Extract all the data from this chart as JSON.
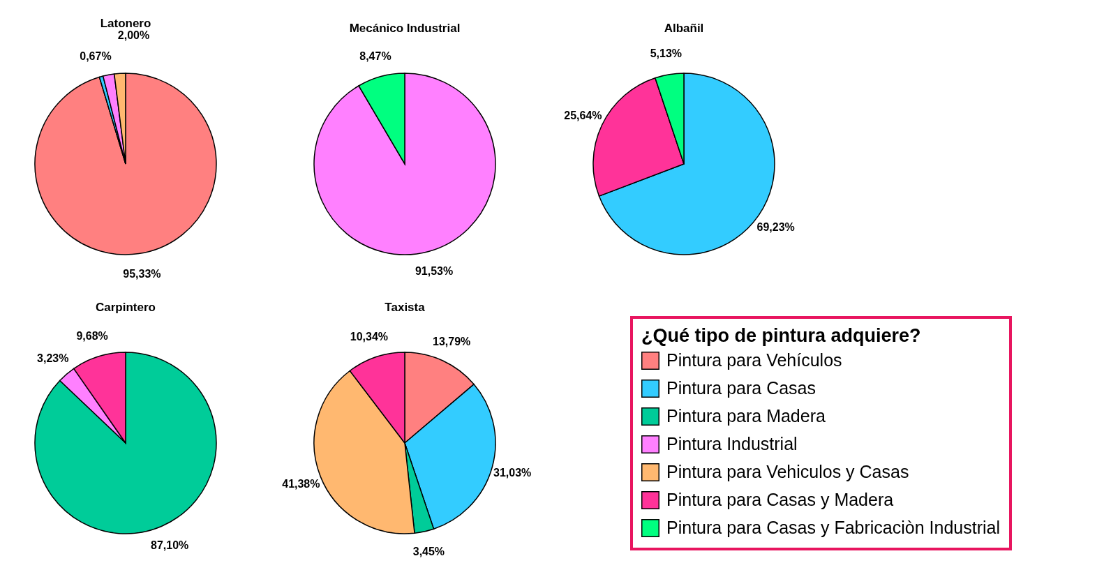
{
  "chart_data": [
    {
      "type": "pie",
      "title": "Latonero",
      "categories": [
        "Pintura para Vehículos",
        "Pintura para Casas",
        "Pintura para Madera",
        "Pintura Industrial",
        "Pintura para Vehiculos y Casas",
        "Pintura para Casas y Madera",
        "Pintura para Casas y Fabricaciòn Industrial"
      ],
      "values": [
        95.33,
        0.67,
        null,
        2.0,
        2.0,
        null,
        null
      ],
      "colors": [
        "#ff8080",
        "#33ccff",
        "#00cc99",
        "#ff80ff",
        "#ffb870",
        "#ff3399",
        "#00ff80"
      ],
      "value_labels": [
        "95,33%",
        "0,67%",
        null,
        null,
        "2,00%",
        null,
        null
      ],
      "legend": "bottom right",
      "legend_title": "¿Qué tipo de pintura adquiere?"
    },
    {
      "type": "pie",
      "title": "Mecánico Industrial",
      "categories": [
        null,
        null
      ],
      "values": [
        91.53,
        8.47
      ],
      "colors": [
        "#ff80ff",
        "#00ff80"
      ],
      "value_labels": [
        "91,53%",
        "8,47%"
      ]
    },
    {
      "type": "pie",
      "title": "Albañil",
      "categories": [
        null,
        null,
        null
      ],
      "values": [
        69.23,
        25.64,
        5.13
      ],
      "colors": [
        "#33ccff",
        "#ff3399",
        "#00ff80"
      ],
      "value_labels": [
        "69,23%",
        "25,64%",
        "5,13%"
      ]
    },
    {
      "type": "pie",
      "title": "Carpintero",
      "categories": [
        null,
        null,
        null
      ],
      "values": [
        87.1,
        3.23,
        9.68
      ],
      "colors": [
        "#00cc99",
        "#ff80ff",
        "#ff3399"
      ],
      "value_labels": [
        "87,10%",
        "3,23%",
        "9,68%"
      ]
    },
    {
      "type": "pie",
      "title": "Taxista",
      "categories": [
        null,
        null,
        null,
        null,
        null
      ],
      "values": [
        13.79,
        31.03,
        3.45,
        41.38,
        10.34
      ],
      "colors": [
        "#ff8080",
        "#33ccff",
        "#00cc99",
        "#ffb870",
        "#ff3399"
      ],
      "value_labels": [
        "13,79%",
        "31,03%",
        "3,45%",
        "41,38%",
        "10,34%"
      ]
    }
  ]
}
